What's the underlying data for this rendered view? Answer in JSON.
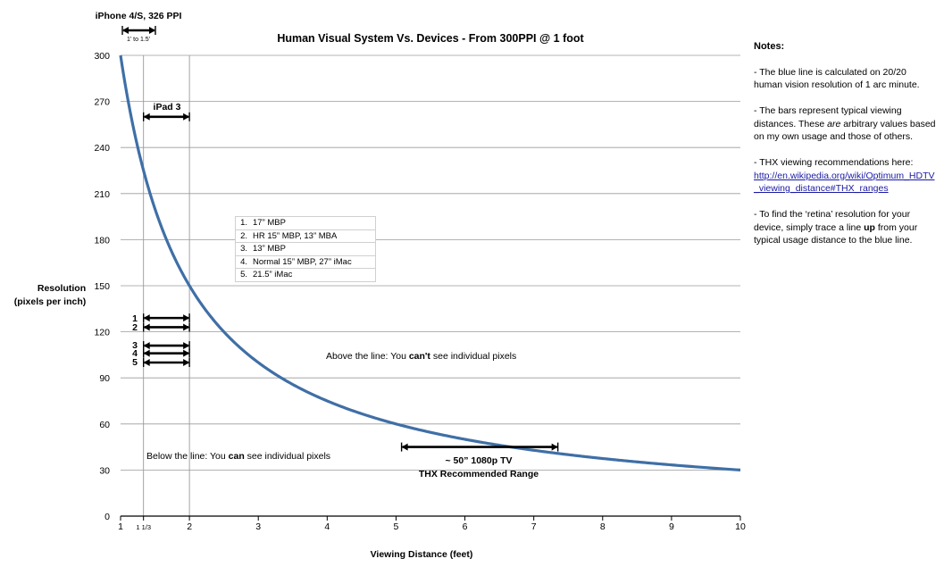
{
  "chart_data": {
    "type": "line",
    "title": "Human Visual System Vs. Devices - From 300PPI @ 1 foot",
    "xlabel": "Viewing Distance (feet)",
    "ylabel_lines": [
      "Resolution",
      "(pixels per inch)"
    ],
    "xlim": [
      1,
      10
    ],
    "ylim": [
      0,
      300
    ],
    "x_ticks": [
      1,
      2,
      3,
      4,
      5,
      6,
      7,
      8,
      9,
      10
    ],
    "x_tick_labels": [
      "1",
      "2",
      "3",
      "4",
      "5",
      "6",
      "7",
      "8",
      "9",
      "10"
    ],
    "extra_x_tick": {
      "value": 1.333,
      "label": "1 1/3"
    },
    "y_ticks": [
      0,
      30,
      60,
      90,
      120,
      150,
      180,
      210,
      240,
      270,
      300
    ],
    "y_tick_labels": [
      "0",
      "30",
      "60",
      "90",
      "120",
      "150",
      "180",
      "210",
      "240",
      "270",
      "300"
    ],
    "grid": "horizontal",
    "vertical_reference_lines": [
      1.333,
      2
    ],
    "series": [
      {
        "color": "#3f6fa6",
        "formula": "300 / x",
        "x": [
          1,
          1.333,
          2,
          3,
          4,
          5,
          6,
          7,
          8,
          9,
          10
        ],
        "values": [
          300,
          225,
          150,
          100,
          75,
          60,
          50,
          42.9,
          37.5,
          33.3,
          30
        ]
      }
    ],
    "range_bars": [
      {
        "label": "",
        "x_start": 1.333,
        "x_end": 2,
        "y": 129
      },
      {
        "label": "",
        "x_start": 1.333,
        "x_end": 2,
        "y": 123
      },
      {
        "label": "",
        "x_start": 1.333,
        "x_end": 2,
        "y": 111
      },
      {
        "label": "",
        "x_start": 1.333,
        "x_end": 2,
        "y": 106
      },
      {
        "label": "",
        "x_start": 1.333,
        "x_end": 2,
        "y": 100
      },
      {
        "label": "iPad 3",
        "x_start": 1.333,
        "x_end": 2,
        "y": 260
      },
      {
        "label": "",
        "x_start": 5.08,
        "x_end": 7.35,
        "y": 45
      }
    ],
    "bar_numbers": [
      "1",
      "2",
      "3",
      "4",
      "5"
    ],
    "iphone": {
      "title": "iPhone 4/S, 326 PPI",
      "range": "1' to 1.5'"
    },
    "tv": {
      "line1": "~ 50” 1080p TV",
      "line2": "THX Recommended Range"
    },
    "annotations": {
      "above_pre": "Above the line: You ",
      "above_bold": "can't",
      "above_post": " see individual pixels",
      "below_pre": "Below the line: You ",
      "below_bold": "can",
      "below_post": " see individual pixels"
    },
    "device_table": [
      {
        "num": "1.",
        "name": "17” MBP"
      },
      {
        "num": "2.",
        "name": "HR 15” MBP, 13” MBA"
      },
      {
        "num": "3.",
        "name": "13” MBP"
      },
      {
        "num": "4.",
        "name": "Normal 15” MBP, 27” iMac"
      },
      {
        "num": "5.",
        "name": "21.5” iMac"
      }
    ]
  },
  "notes": {
    "title": "Notes:",
    "p1": "- The blue line is calculated on 20/20 human vision resolution of 1 arc minute.",
    "p2_pre": "- The bars represent typical viewing distances. These ",
    "p2_em": "are",
    "p2_post": " arbitrary values based on my own usage and those of others.",
    "p3": "- THX viewing recommendations here:",
    "p3_link": "http://en.wikipedia.org/wiki/Optimum_HDTV_viewing_distance#THX_ranges",
    "p4_pre": "- To find the ‘retina’ resolution for your device, simply trace a line ",
    "p4_bold": "up",
    "p4_post": " from your typical usage distance to the blue line."
  }
}
